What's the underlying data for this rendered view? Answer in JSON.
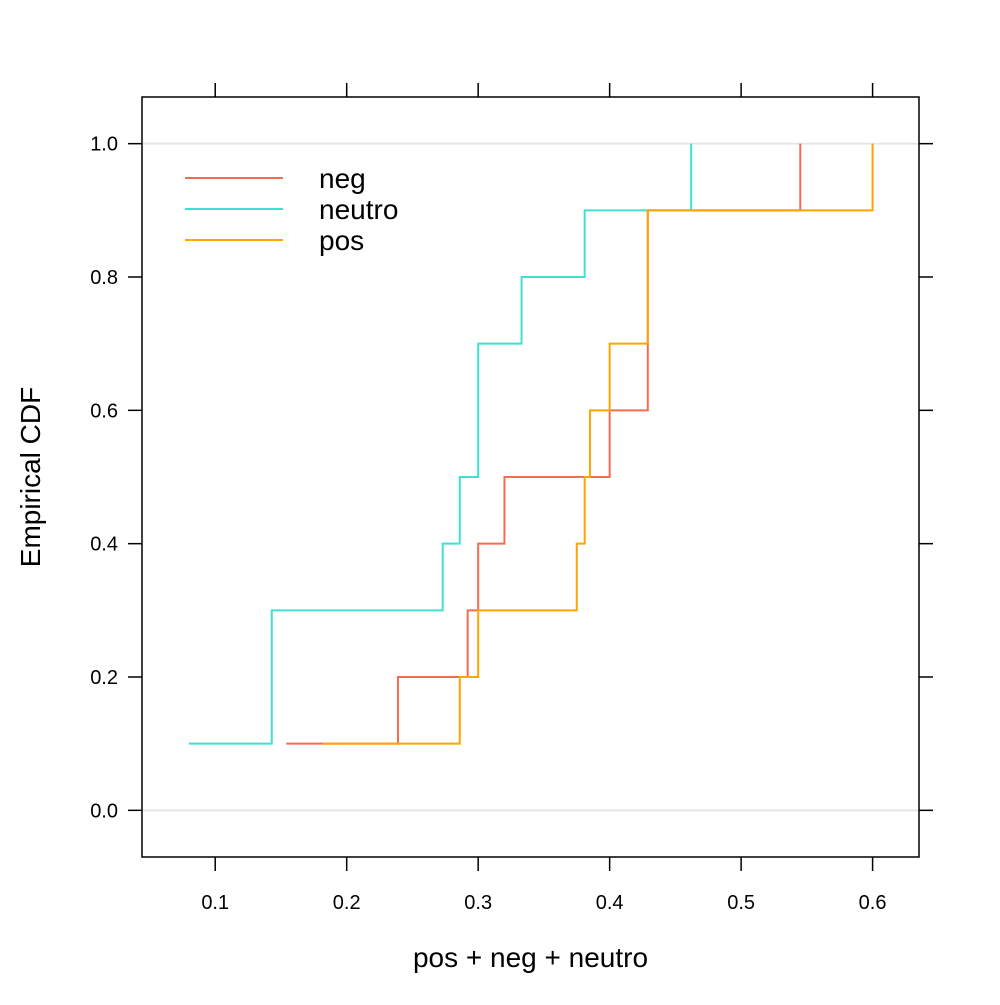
{
  "chart_data": {
    "type": "line",
    "step": true,
    "title": "",
    "xlabel": "pos + neg + neutro",
    "ylabel": "Empirical CDF",
    "xlim": [
      0.0443,
      0.6353
    ],
    "ylim": [
      -0.07,
      1.07
    ],
    "xticks": [
      0.1,
      0.2,
      0.3,
      0.4,
      0.5,
      0.6
    ],
    "xtick_labels": [
      "0.1",
      "0.2",
      "0.3",
      "0.4",
      "0.5",
      "0.6"
    ],
    "yticks": [
      0.0,
      0.2,
      0.4,
      0.6,
      0.8,
      1.0
    ],
    "ytick_labels": [
      "0.0",
      "0.2",
      "0.4",
      "0.6",
      "0.8",
      "1.0"
    ],
    "reference_lines": [
      0.0,
      1.0
    ],
    "reference_line_color": "#e6e6e6",
    "grid": false,
    "legend_position": "top-left",
    "series": [
      {
        "name": "neg",
        "color": "#f46d50",
        "x": [
          0.154,
          0.239,
          0.292,
          0.3,
          0.32,
          0.4,
          0.429,
          0.545
        ],
        "y": [
          0.1,
          0.2,
          0.3,
          0.4,
          0.5,
          0.6,
          0.9,
          1.0
        ]
      },
      {
        "name": "neutro",
        "color": "#40e0d0",
        "x": [
          0.08,
          0.143,
          0.273,
          0.286,
          0.3,
          0.333,
          0.381,
          0.462
        ],
        "y": [
          0.1,
          0.3,
          0.4,
          0.5,
          0.7,
          0.8,
          0.9,
          1.0
        ]
      },
      {
        "name": "pos",
        "color": "#ffa500",
        "x": [
          0.182,
          0.286,
          0.3,
          0.375,
          0.381,
          0.385,
          0.4,
          0.429,
          0.6
        ],
        "y": [
          0.1,
          0.2,
          0.3,
          0.4,
          0.5,
          0.6,
          0.7,
          0.9,
          1.0
        ]
      }
    ]
  }
}
